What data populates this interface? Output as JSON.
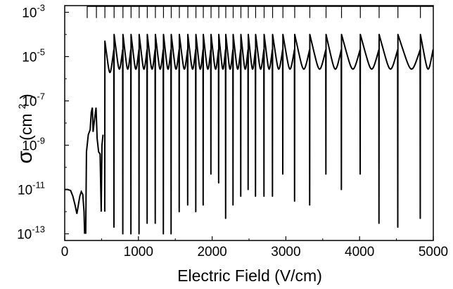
{
  "chart_data": {
    "type": "line",
    "title": "",
    "xlabel": "Electric Field (V/cm)",
    "ylabel": "σ (cm²)",
    "ylabel_parts": {
      "symbol": "σ",
      "unit_open": "(cm",
      "unit_power": "2",
      "unit_close": ")"
    },
    "xlim": [
      0,
      5000
    ],
    "ylim": [
      5e-14,
      0.002
    ],
    "yscale": "log",
    "grid": false,
    "legend": "none",
    "x_ticks": [
      0,
      1000,
      2000,
      3000,
      4000,
      5000
    ],
    "x_tick_labels": [
      "0",
      "1000",
      "2000",
      "3000",
      "4000",
      "5000"
    ],
    "y_ticks": [
      {
        "value": 1e-13,
        "base": "10",
        "exp": "-13"
      },
      {
        "value": 1e-11,
        "base": "10",
        "exp": "-11"
      },
      {
        "value": 1e-09,
        "base": "10",
        "exp": "-9"
      },
      {
        "value": 1e-07,
        "base": "10",
        "exp": "-7"
      },
      {
        "value": 1e-05,
        "base": "10",
        "exp": "-5"
      },
      {
        "value": 0.001,
        "base": "10",
        "exp": "-3"
      }
    ],
    "resonance_markers": {
      "level": 0.0019,
      "drop_to": 0.00055,
      "x": [
        305,
        430,
        545,
        670,
        790,
        900,
        1010,
        1120,
        1230,
        1340,
        1445,
        1555,
        1670,
        1780,
        1880,
        1985,
        2090,
        2185,
        2285,
        2390,
        2490,
        2590,
        2705,
        2820,
        2960,
        3120,
        3325,
        3545,
        3755,
        4010,
        4265,
        4520,
        4825
      ]
    },
    "resonances": [
      {
        "x": 545,
        "peak": 5e-05,
        "min": 1e-12
      },
      {
        "x": 670,
        "peak": 0.0001,
        "min": 2e-13
      },
      {
        "x": 790,
        "peak": 0.0001,
        "min": 1e-13
      },
      {
        "x": 900,
        "peak": 0.0001,
        "min": 1e-13
      },
      {
        "x": 1010,
        "peak": 0.0001,
        "min": 1e-13
      },
      {
        "x": 1120,
        "peak": 0.0001,
        "min": 3e-13
      },
      {
        "x": 1230,
        "peak": 0.0001,
        "min": 3e-13
      },
      {
        "x": 1340,
        "peak": 0.0001,
        "min": 1e-13
      },
      {
        "x": 1445,
        "peak": 0.0001,
        "min": 1e-13
      },
      {
        "x": 1555,
        "peak": 0.0001,
        "min": 1e-12
      },
      {
        "x": 1670,
        "peak": 0.0001,
        "min": 2e-12
      },
      {
        "x": 1780,
        "peak": 0.0001,
        "min": 1e-12
      },
      {
        "x": 1880,
        "peak": 0.0001,
        "min": 2e-12
      },
      {
        "x": 1985,
        "peak": 0.0001,
        "min": 5e-11
      },
      {
        "x": 2090,
        "peak": 0.0001,
        "min": 2e-11
      },
      {
        "x": 2185,
        "peak": 0.0001,
        "min": 5e-13
      },
      {
        "x": 2285,
        "peak": 0.0001,
        "min": 2e-12
      },
      {
        "x": 2390,
        "peak": 0.0001,
        "min": 5e-12
      },
      {
        "x": 2490,
        "peak": 0.0001,
        "min": 1e-11
      },
      {
        "x": 2590,
        "peak": 0.0001,
        "min": 5e-12
      },
      {
        "x": 2705,
        "peak": 0.0001,
        "min": 5e-12
      },
      {
        "x": 2820,
        "peak": 0.0001,
        "min": 5e-12
      },
      {
        "x": 2960,
        "peak": 0.0001,
        "min": 5e-11
      },
      {
        "x": 3120,
        "peak": 0.0001,
        "min": 3e-12
      },
      {
        "x": 3325,
        "peak": 0.0001,
        "min": 2e-12
      },
      {
        "x": 3545,
        "peak": 0.0001,
        "min": 5e-11
      },
      {
        "x": 3755,
        "peak": 0.0001,
        "min": 1e-11
      },
      {
        "x": 4010,
        "peak": 0.0001,
        "min": 5e-11
      },
      {
        "x": 4265,
        "peak": 0.0001,
        "min": 3e-13
      },
      {
        "x": 4520,
        "peak": 0.0001,
        "min": 2e-13
      },
      {
        "x": 4825,
        "peak": 0.0001,
        "min": 5e-13
      }
    ],
    "low_field_segment": [
      [
        0,
        1e-11
      ],
      [
        40,
        1e-11
      ],
      [
        80,
        9e-12
      ],
      [
        110,
        5e-12
      ],
      [
        140,
        2e-12
      ],
      [
        165,
        8e-13
      ],
      [
        185,
        2e-12
      ],
      [
        205,
        5e-12
      ],
      [
        225,
        8e-12
      ],
      [
        245,
        6e-12
      ],
      [
        262,
        1e-12
      ],
      [
        270,
        1e-13
      ]
    ],
    "low_field_segment_2": [
      [
        285,
        1e-13
      ],
      [
        295,
        5e-10
      ],
      [
        320,
        3e-09
      ],
      [
        345,
        5e-09
      ],
      [
        360,
        3e-08
      ],
      [
        375,
        5e-08
      ],
      [
        385,
        4e-09
      ],
      [
        395,
        8e-09
      ],
      [
        410,
        2e-08
      ],
      [
        425,
        5e-08
      ],
      [
        440,
        2e-09
      ],
      [
        460,
        5e-10
      ],
      [
        480,
        4e-10
      ],
      [
        495,
        1e-12
      ],
      [
        505,
        1e-09
      ],
      [
        520,
        3e-09
      ]
    ]
  }
}
